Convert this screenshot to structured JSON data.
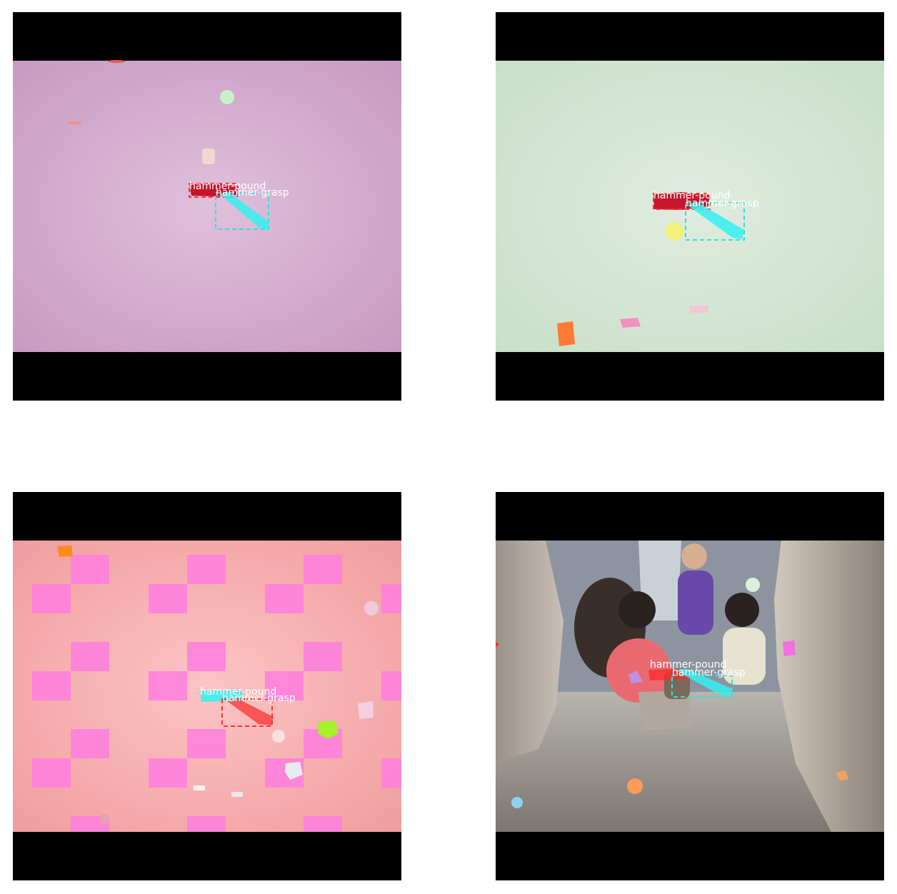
{
  "figure": {
    "background": "#ffffff",
    "letterbox_color": "#000000",
    "panels": [
      {
        "id": "p1",
        "scene": "pink-gradient-background",
        "labels": {
          "pound": "hammer-pound",
          "grasp": "hammer-grasp"
        },
        "pound_color": "#cc0000",
        "grasp_color": "#33e0e0"
      },
      {
        "id": "p2",
        "scene": "mint-gradient-background",
        "labels": {
          "pound": "hammer-pound",
          "grasp": "hammer-grasp"
        },
        "pound_color": "#cc0000",
        "grasp_color": "#33e0e0"
      },
      {
        "id": "p3",
        "scene": "salmon-checkerboard-background",
        "labels": {
          "pound": "hammer-pound",
          "grasp": "hammer-grasp"
        },
        "pound_color": "#ff2a2a",
        "grasp_color": "#33e0e0"
      },
      {
        "id": "p4",
        "scene": "photo-people-with-cat",
        "labels": {
          "pound": "hammer-pound",
          "grasp": "hammer-grasp"
        },
        "pound_color": "#ff2a2a",
        "grasp_color": "#33e0e0"
      }
    ]
  }
}
